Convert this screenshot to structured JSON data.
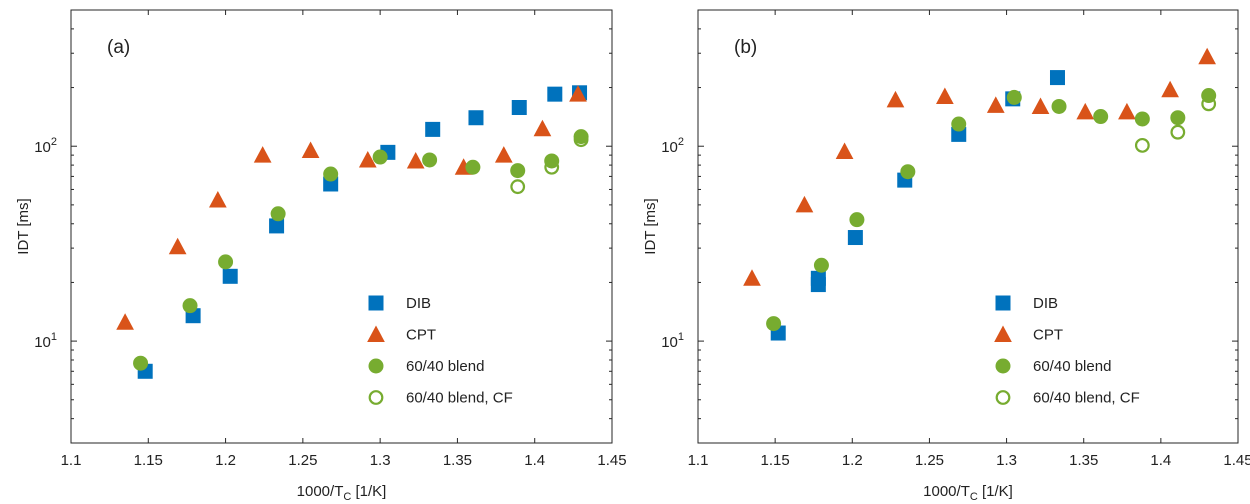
{
  "colors": {
    "DIB": "#0072BD",
    "CPT": "#D95319",
    "blend": "#77AC30"
  },
  "chart_data": [
    {
      "panel": "(a)",
      "type": "scatter",
      "xlabel": "1000/T",
      "xlabel_sub": "C",
      "xlabel_unit": " [1/K]",
      "ylabel": "IDT [ms]",
      "xlim": [
        1.1,
        1.45
      ],
      "ylim": [
        3,
        500
      ],
      "yscale": "log",
      "xticks": [
        "1.1",
        "1.15",
        "1.2",
        "1.25",
        "1.3",
        "1.35",
        "1.4",
        "1.45"
      ],
      "yticks": [
        {
          "base": "10",
          "exp": "1",
          "value": 10
        },
        {
          "base": "10",
          "exp": "2",
          "value": 100
        }
      ],
      "legend_position": "lower-right",
      "series": [
        {
          "name": "DIB",
          "marker": "square-filled",
          "color_key": "DIB",
          "points": [
            [
              1.148,
              7
            ],
            [
              1.179,
              13.5
            ],
            [
              1.203,
              21.5
            ],
            [
              1.233,
              39
            ],
            [
              1.268,
              64
            ],
            [
              1.305,
              93
            ],
            [
              1.334,
              122
            ],
            [
              1.362,
              140
            ],
            [
              1.39,
              158
            ],
            [
              1.413,
              185
            ],
            [
              1.429,
              188
            ]
          ]
        },
        {
          "name": "CPT",
          "marker": "triangle-filled",
          "color_key": "CPT",
          "points": [
            [
              1.135,
              12.5
            ],
            [
              1.169,
              30.5
            ],
            [
              1.195,
              53
            ],
            [
              1.224,
              90
            ],
            [
              1.255,
              95
            ],
            [
              1.292,
              85
            ],
            [
              1.323,
              84
            ],
            [
              1.354,
              78
            ],
            [
              1.38,
              90
            ],
            [
              1.405,
              123
            ],
            [
              1.428,
              185
            ]
          ]
        },
        {
          "name": "60/40 blend",
          "marker": "circle-filled",
          "color_key": "blend",
          "points": [
            [
              1.145,
              7.7
            ],
            [
              1.177,
              15.2
            ],
            [
              1.2,
              25.5
            ],
            [
              1.234,
              45
            ],
            [
              1.268,
              72
            ],
            [
              1.3,
              88
            ],
            [
              1.332,
              85
            ],
            [
              1.36,
              78
            ],
            [
              1.389,
              75
            ],
            [
              1.411,
              84
            ],
            [
              1.43,
              112
            ]
          ]
        },
        {
          "name": "60/40 blend, CF",
          "marker": "circle-open",
          "color_key": "blend",
          "points": [
            [
              1.389,
              62
            ],
            [
              1.411,
              78
            ],
            [
              1.43,
              108
            ]
          ]
        }
      ]
    },
    {
      "panel": "(b)",
      "type": "scatter",
      "xlabel": "1000/T",
      "xlabel_sub": "C",
      "xlabel_unit": " [1/K]",
      "ylabel": "IDT [ms]",
      "xlim": [
        1.1,
        1.45
      ],
      "ylim": [
        3,
        500
      ],
      "yscale": "log",
      "xticks": [
        "1.1",
        "1.15",
        "1.2",
        "1.25",
        "1.3",
        "1.35",
        "1.4",
        "1.45"
      ],
      "yticks": [
        {
          "base": "10",
          "exp": "1",
          "value": 10
        },
        {
          "base": "10",
          "exp": "2",
          "value": 100
        }
      ],
      "legend_position": "lower-right",
      "series": [
        {
          "name": "DIB",
          "marker": "square-filled",
          "color_key": "DIB",
          "points": [
            [
              1.152,
              11
            ],
            [
              1.178,
              19.5
            ],
            [
              1.178,
              21
            ],
            [
              1.202,
              34
            ],
            [
              1.234,
              67
            ],
            [
              1.269,
              115
            ],
            [
              1.304,
              175
            ],
            [
              1.333,
              225
            ]
          ]
        },
        {
          "name": "CPT",
          "marker": "triangle-filled",
          "color_key": "CPT",
          "points": [
            [
              1.135,
              21
            ],
            [
              1.169,
              50
            ],
            [
              1.195,
              94
            ],
            [
              1.228,
              173
            ],
            [
              1.26,
              180
            ],
            [
              1.293,
              162
            ],
            [
              1.322,
              160
            ],
            [
              1.351,
              150
            ],
            [
              1.378,
              150
            ],
            [
              1.406,
              195
            ],
            [
              1.43,
              288
            ]
          ]
        },
        {
          "name": "60/40 blend",
          "marker": "circle-filled",
          "color_key": "blend",
          "points": [
            [
              1.149,
              12.3
            ],
            [
              1.18,
              24.5
            ],
            [
              1.203,
              42
            ],
            [
              1.236,
              74
            ],
            [
              1.269,
              130
            ],
            [
              1.305,
              178
            ],
            [
              1.334,
              160
            ],
            [
              1.361,
              142
            ],
            [
              1.388,
              138
            ],
            [
              1.411,
              140
            ],
            [
              1.431,
              182
            ]
          ]
        },
        {
          "name": "60/40 blend, CF",
          "marker": "circle-open",
          "color_key": "blend",
          "points": [
            [
              1.388,
              101
            ],
            [
              1.411,
              118
            ],
            [
              1.431,
              165
            ]
          ]
        }
      ]
    }
  ]
}
